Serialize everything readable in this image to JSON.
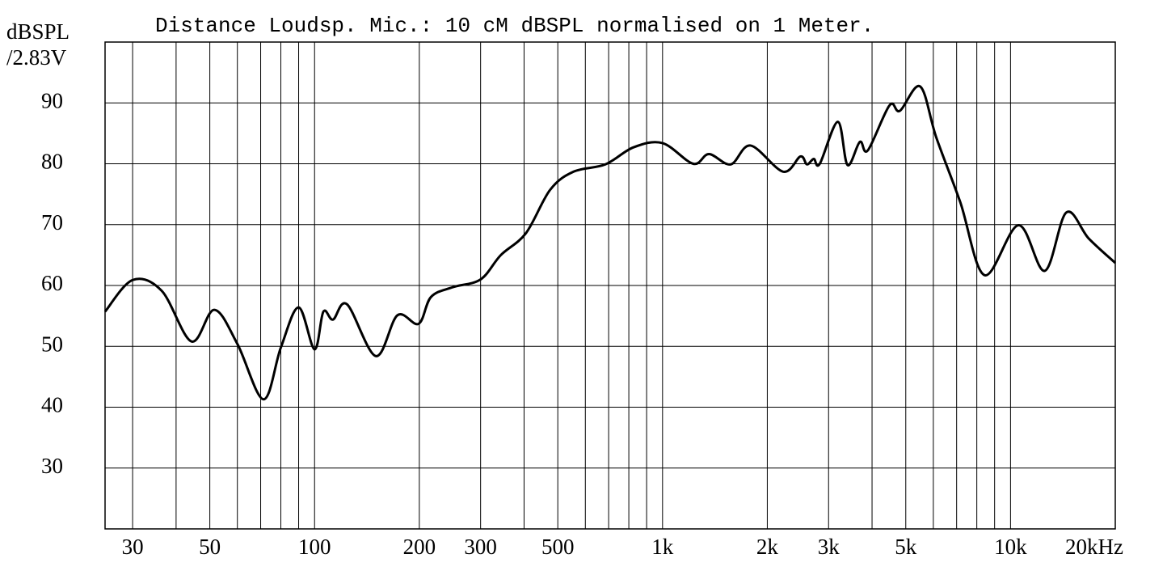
{
  "chart_data": {
    "type": "line",
    "title": "Distance Loudsp. Mic.: 10 cM dBSPL normalised on 1 Meter.",
    "ylabel": [
      "dBSPL",
      "/2.83V"
    ],
    "xscale": "log",
    "grid": true,
    "xlim": [
      25,
      20000
    ],
    "ylim": [
      20,
      100
    ],
    "yticks": [
      30,
      40,
      50,
      60,
      70,
      80,
      90
    ],
    "xticks": [
      30,
      50,
      100,
      200,
      300,
      500,
      {
        "value": 1000,
        "label": "1k"
      },
      {
        "value": 2000,
        "label": "2k"
      },
      {
        "value": 3000,
        "label": "3k"
      },
      {
        "value": 5000,
        "label": "5k"
      },
      {
        "value": 10000,
        "label": "10k"
      },
      {
        "value": 20000,
        "label": "20kHz"
      }
    ],
    "xminor": [
      40,
      60,
      70,
      80,
      90,
      400,
      600,
      700,
      800,
      900,
      4000,
      6000,
      7000,
      8000,
      9000
    ],
    "x": [
      25,
      30,
      36.4,
      44.3,
      51.5,
      60,
      71.3,
      80,
      90,
      100,
      106,
      113,
      124,
      150,
      173,
      199,
      216,
      249,
      300,
      343,
      405,
      475,
      555,
      685,
      825,
      1000,
      1225,
      1360,
      1570,
      1790,
      2220,
      2490,
      2600,
      2720,
      2830,
      3190,
      3400,
      3690,
      3890,
      4490,
      4810,
      5500,
      6120,
      7170,
      8420,
      10540,
      12540,
      14470,
      16790,
      20000
    ],
    "series": [
      {
        "color": "#000000",
        "values": [
          55.7,
          60.9,
          59.1,
          50.8,
          56.0,
          50.4,
          41.3,
          49.8,
          56.4,
          49.5,
          55.7,
          54.4,
          56.9,
          48.4,
          55.1,
          53.7,
          58.1,
          59.7,
          61.0,
          65.0,
          68.6,
          75.7,
          78.7,
          79.9,
          82.7,
          83.4,
          80.0,
          81.6,
          79.9,
          83.0,
          78.7,
          81.2,
          79.9,
          80.8,
          80.0,
          86.9,
          79.8,
          83.6,
          82.2,
          89.6,
          88.7,
          92.7,
          84.3,
          73.7,
          61.7,
          69.9,
          62.4,
          72.0,
          67.7,
          63.7
        ]
      }
    ]
  }
}
